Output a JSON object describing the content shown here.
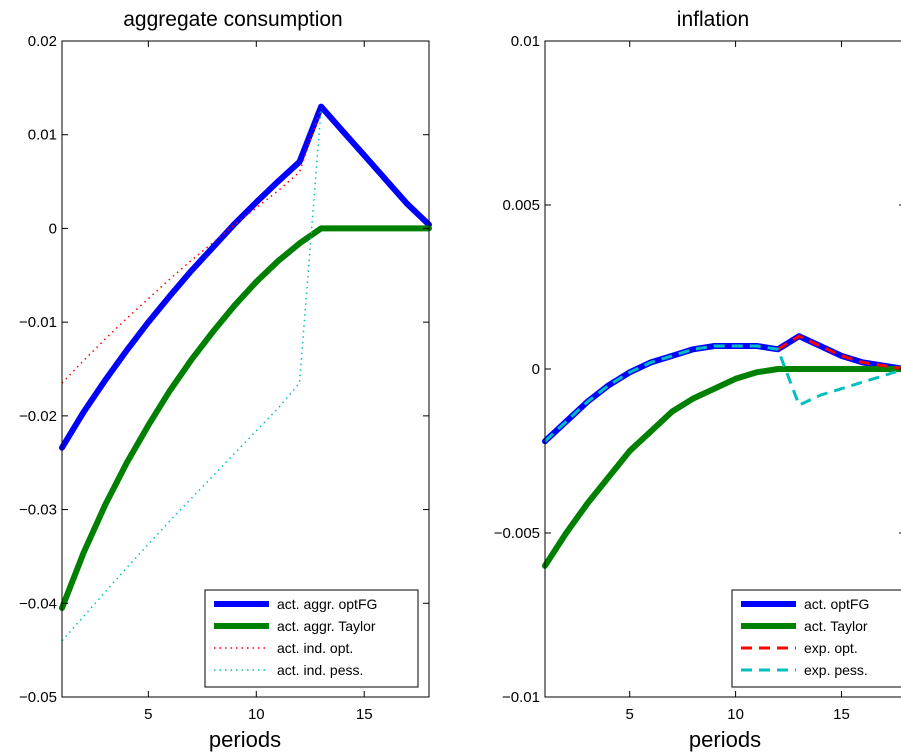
{
  "chart_data": [
    {
      "type": "line",
      "title": "aggregate consumption",
      "xlabel": "periods",
      "ylabel": "",
      "xlim": [
        1,
        18
      ],
      "ylim": [
        -0.05,
        0.02
      ],
      "xticks": [
        5,
        10,
        15
      ],
      "yticks": [
        -0.05,
        -0.04,
        -0.03,
        -0.02,
        -0.01,
        0,
        0.01,
        0.02
      ],
      "ytick_labels": [
        "−0.05",
        "−0.04",
        "−0.03",
        "−0.02",
        "−0.01",
        "0",
        "0.01",
        "0.02"
      ],
      "grid": false,
      "legend_position": "bottom-right",
      "series": [
        {
          "name": "act. aggr. optFG",
          "color": "#0000ff",
          "style": "solid",
          "width": 6,
          "x": [
            1,
            2,
            3,
            4,
            5,
            6,
            7,
            8,
            9,
            10,
            11,
            12,
            13,
            14,
            15,
            16,
            17,
            18
          ],
          "y": [
            -0.0234,
            -0.0196,
            -0.0162,
            -0.013,
            -0.01,
            -0.0072,
            -0.0045,
            -0.002,
            0.0005,
            0.0028,
            0.005,
            0.0071,
            0.013,
            0.0104,
            0.0078,
            0.0052,
            0.0026,
            0.0004
          ]
        },
        {
          "name": "act. aggr. Taylor",
          "color": "#008000",
          "style": "solid",
          "width": 6,
          "x": [
            1,
            2,
            3,
            4,
            5,
            6,
            7,
            8,
            9,
            10,
            11,
            12,
            13,
            14,
            15,
            16,
            17,
            18
          ],
          "y": [
            -0.0405,
            -0.0346,
            -0.0295,
            -0.025,
            -0.021,
            -0.0173,
            -0.014,
            -0.011,
            -0.0082,
            -0.0057,
            -0.0035,
            -0.0016,
            0,
            0,
            0,
            0,
            0,
            0
          ]
        },
        {
          "name": "act. ind. opt.",
          "color": "#ff0000",
          "style": "dotted",
          "width": 1.5,
          "x": [
            1,
            2,
            3,
            4,
            5,
            6,
            7,
            8,
            9,
            10,
            11,
            12,
            13
          ],
          "y": [
            -0.0165,
            -0.0141,
            -0.0118,
            -0.0096,
            -0.0075,
            -0.0054,
            -0.0034,
            -0.0015,
            0.0004,
            0.0022,
            0.004,
            0.006,
            0.0128
          ]
        },
        {
          "name": "act. ind. pess.",
          "color": "#00bfbf",
          "style": "dotted",
          "width": 1.5,
          "x": [
            1,
            2,
            3,
            4,
            5,
            6,
            7,
            8,
            9,
            10,
            11,
            12,
            13
          ],
          "y": [
            -0.044,
            -0.0414,
            -0.0388,
            -0.0362,
            -0.0337,
            -0.0312,
            -0.0288,
            -0.0264,
            -0.024,
            -0.0216,
            -0.0192,
            -0.0165,
            0.0128
          ]
        }
      ]
    },
    {
      "type": "line",
      "title": "inflation",
      "xlabel": "periods",
      "ylabel": "",
      "xlim": [
        1,
        18
      ],
      "ylim": [
        -0.01,
        0.01
      ],
      "xticks": [
        5,
        10,
        15
      ],
      "yticks": [
        -0.01,
        -0.005,
        0,
        0.005,
        0.01
      ],
      "ytick_labels": [
        "−0.01",
        "−0.005",
        "0",
        "0.005",
        "0.01"
      ],
      "grid": false,
      "legend_position": "bottom-right",
      "series": [
        {
          "name": "act. optFG",
          "color": "#0000ff",
          "style": "solid",
          "width": 6,
          "x": [
            1,
            2,
            3,
            4,
            5,
            6,
            7,
            8,
            9,
            10,
            11,
            12,
            13,
            14,
            15,
            16,
            17,
            18
          ],
          "y": [
            -0.0022,
            -0.0016,
            -0.001,
            -0.0005,
            -0.0001,
            0.0002,
            0.0004,
            0.0006,
            0.0007,
            0.0007,
            0.0007,
            0.0006,
            0.001,
            0.0007,
            0.0004,
            0.0002,
            0.0001,
            0.0
          ]
        },
        {
          "name": "act. Taylor",
          "color": "#008000",
          "style": "solid",
          "width": 6,
          "x": [
            1,
            2,
            3,
            4,
            5,
            6,
            7,
            8,
            9,
            10,
            11,
            12,
            13,
            14,
            15,
            16,
            17,
            18
          ],
          "y": [
            -0.006,
            -0.005,
            -0.0041,
            -0.0033,
            -0.0025,
            -0.0019,
            -0.0013,
            -0.0009,
            -0.0006,
            -0.0003,
            -0.0001,
            0,
            0,
            0,
            0,
            0,
            0,
            0
          ]
        },
        {
          "name": "exp. opt.",
          "color": "#ff0000",
          "style": "dashed",
          "width": 3,
          "x": [
            12,
            13,
            14,
            15,
            16,
            17,
            18
          ],
          "y": [
            0.0006,
            0.001,
            0.0007,
            0.0004,
            0.0002,
            0.0001,
            0.0
          ]
        },
        {
          "name": "exp. pess.",
          "color": "#00bfbf",
          "style": "dashed",
          "width": 3,
          "x": [
            1,
            2,
            3,
            4,
            5,
            6,
            7,
            8,
            9,
            10,
            11,
            12,
            13,
            14,
            15,
            16,
            17,
            18
          ],
          "y": [
            -0.0022,
            -0.0016,
            -0.001,
            -0.0005,
            -0.0001,
            0.0002,
            0.0004,
            0.0006,
            0.0007,
            0.0007,
            0.0007,
            0.0006,
            -0.0011,
            -0.0008,
            -0.0006,
            -0.0004,
            -0.0002,
            0.0
          ]
        }
      ]
    }
  ]
}
